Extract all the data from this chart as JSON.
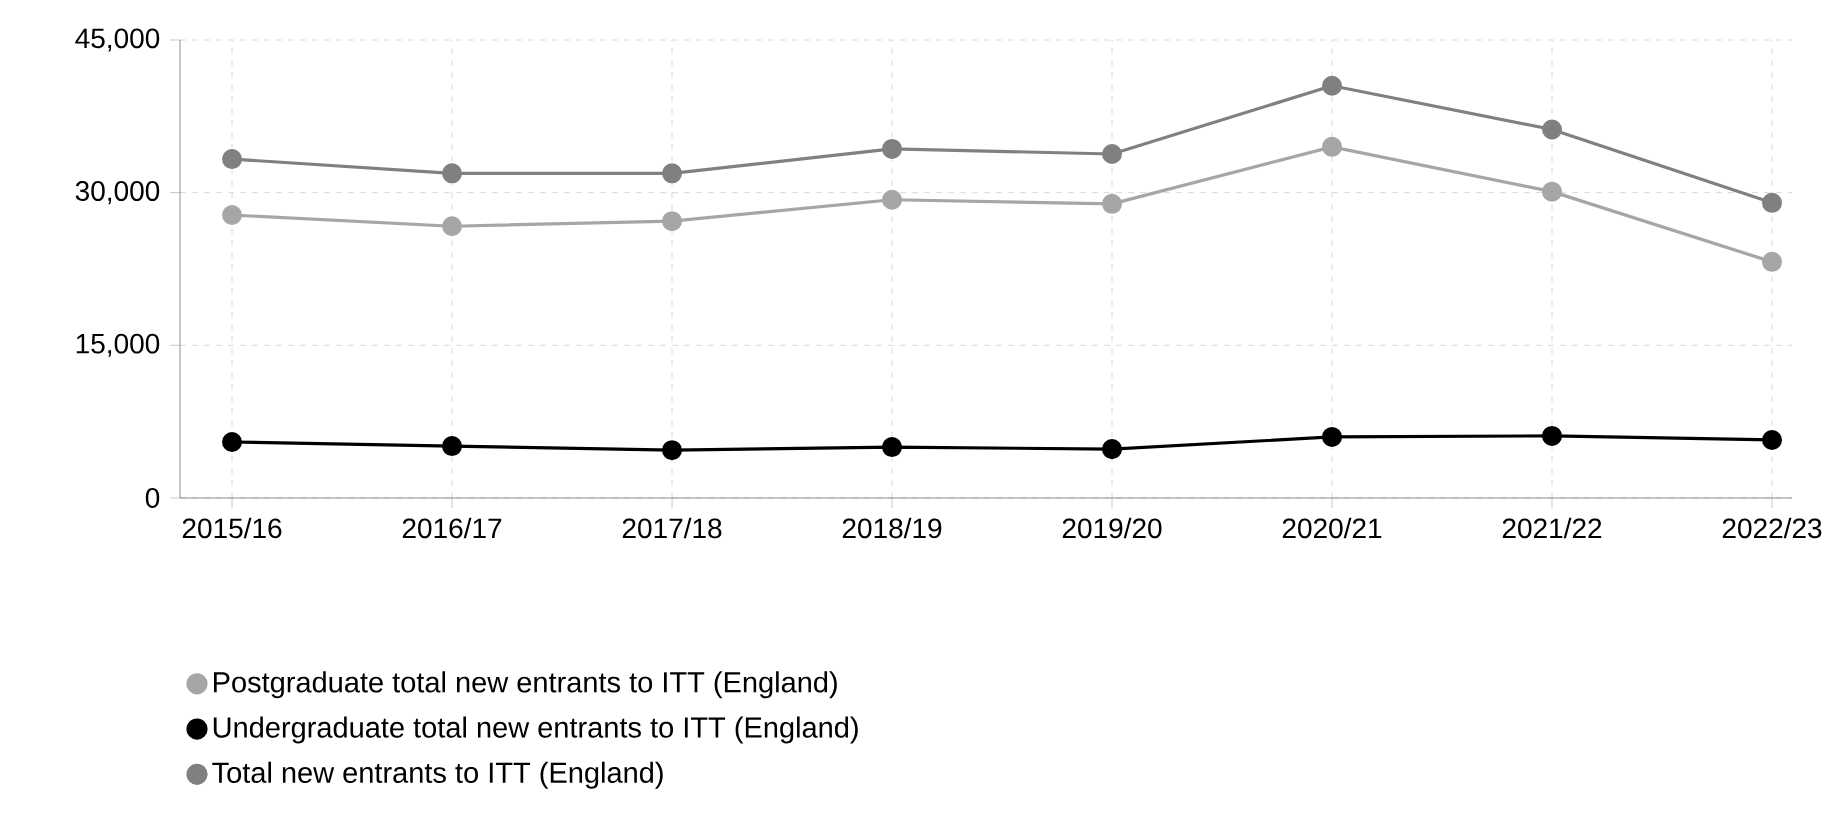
{
  "chart_data": {
    "type": "line",
    "categories": [
      "2015/16",
      "2016/17",
      "2017/18",
      "2018/19",
      "2019/20",
      "2020/21",
      "2021/22",
      "2022/23"
    ],
    "series": [
      {
        "name": "Postgraduate total new entrants to ITT (England)",
        "color": "#a6a6a6",
        "values": [
          27800,
          26700,
          27200,
          29300,
          28900,
          34500,
          30100,
          23200
        ]
      },
      {
        "name": "Undergraduate total new entrants to ITT (England)",
        "color": "#000000",
        "values": [
          5500,
          5100,
          4700,
          5000,
          4800,
          6000,
          6100,
          5700
        ]
      },
      {
        "name": "Total new entrants to ITT (England)",
        "color": "#808080",
        "values": [
          33300,
          31900,
          31900,
          34300,
          33800,
          40500,
          36200,
          29000
        ]
      }
    ],
    "ylim": [
      0,
      45000
    ],
    "yticks": [
      {
        "value": 0,
        "label": "0"
      },
      {
        "value": 15000,
        "label": "15,000"
      },
      {
        "value": 30000,
        "label": "30,000"
      },
      {
        "value": 45000,
        "label": "45,000"
      }
    ],
    "grid": true,
    "legend": "bottom left",
    "marker": "circle",
    "line_style": "solid"
  }
}
